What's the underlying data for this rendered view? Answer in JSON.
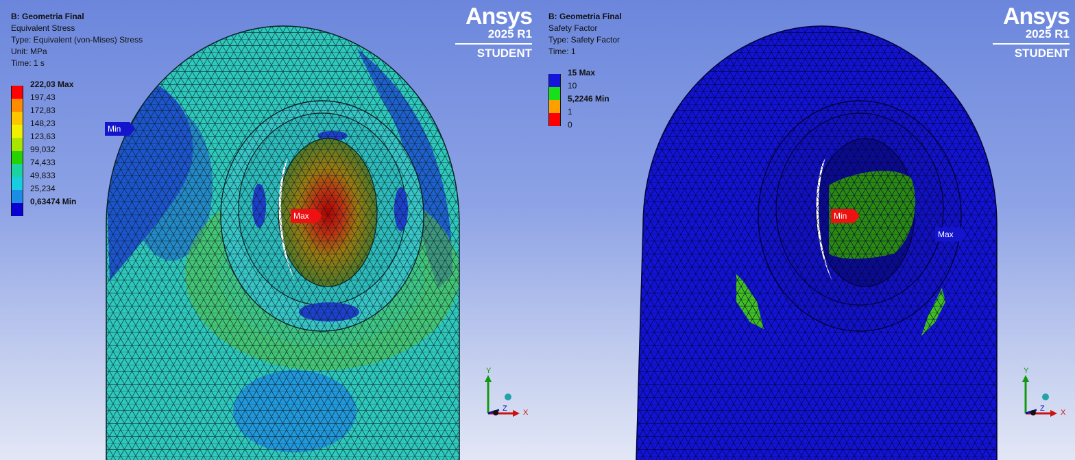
{
  "brand": {
    "name": "Ansys",
    "version": "2025 R1",
    "edition": "STUDENT"
  },
  "left_view": {
    "info": {
      "title": "B: Geometria Final",
      "line1": "Equivalent Stress",
      "line2": "Type: Equivalent (von-Mises) Stress",
      "line3": "Unit: MPa",
      "line4": "Time: 1 s"
    },
    "legend": {
      "labels": [
        "222,03 Max",
        "197,43",
        "172,83",
        "148,23",
        "123,63",
        "99,032",
        "74,433",
        "49,833",
        "25,234",
        "0,63474 Min"
      ],
      "colors": [
        "#ff0000",
        "#ff8c00",
        "#ffc600",
        "#f0f000",
        "#a8e600",
        "#28d200",
        "#1cd2a0",
        "#19cde0",
        "#1e8ce6",
        "#0a00d2"
      ]
    },
    "probes": {
      "max": "Max",
      "min": "Min"
    }
  },
  "right_view": {
    "info": {
      "title": "B: Geometria Final",
      "line1": "Safety Factor",
      "line2": "Type: Safety Factor",
      "line3": "Time: 1"
    },
    "legend": {
      "labels": [
        "15 Max",
        "10",
        "5,2246 Min",
        "1",
        "0"
      ],
      "colors": [
        "#1414dc",
        "#18e018",
        "#ffa000",
        "#ff0000"
      ]
    },
    "probes": {
      "max": "Max",
      "min": "Min"
    }
  },
  "triad": {
    "y": "Y",
    "z": "Z",
    "x": "X"
  }
}
